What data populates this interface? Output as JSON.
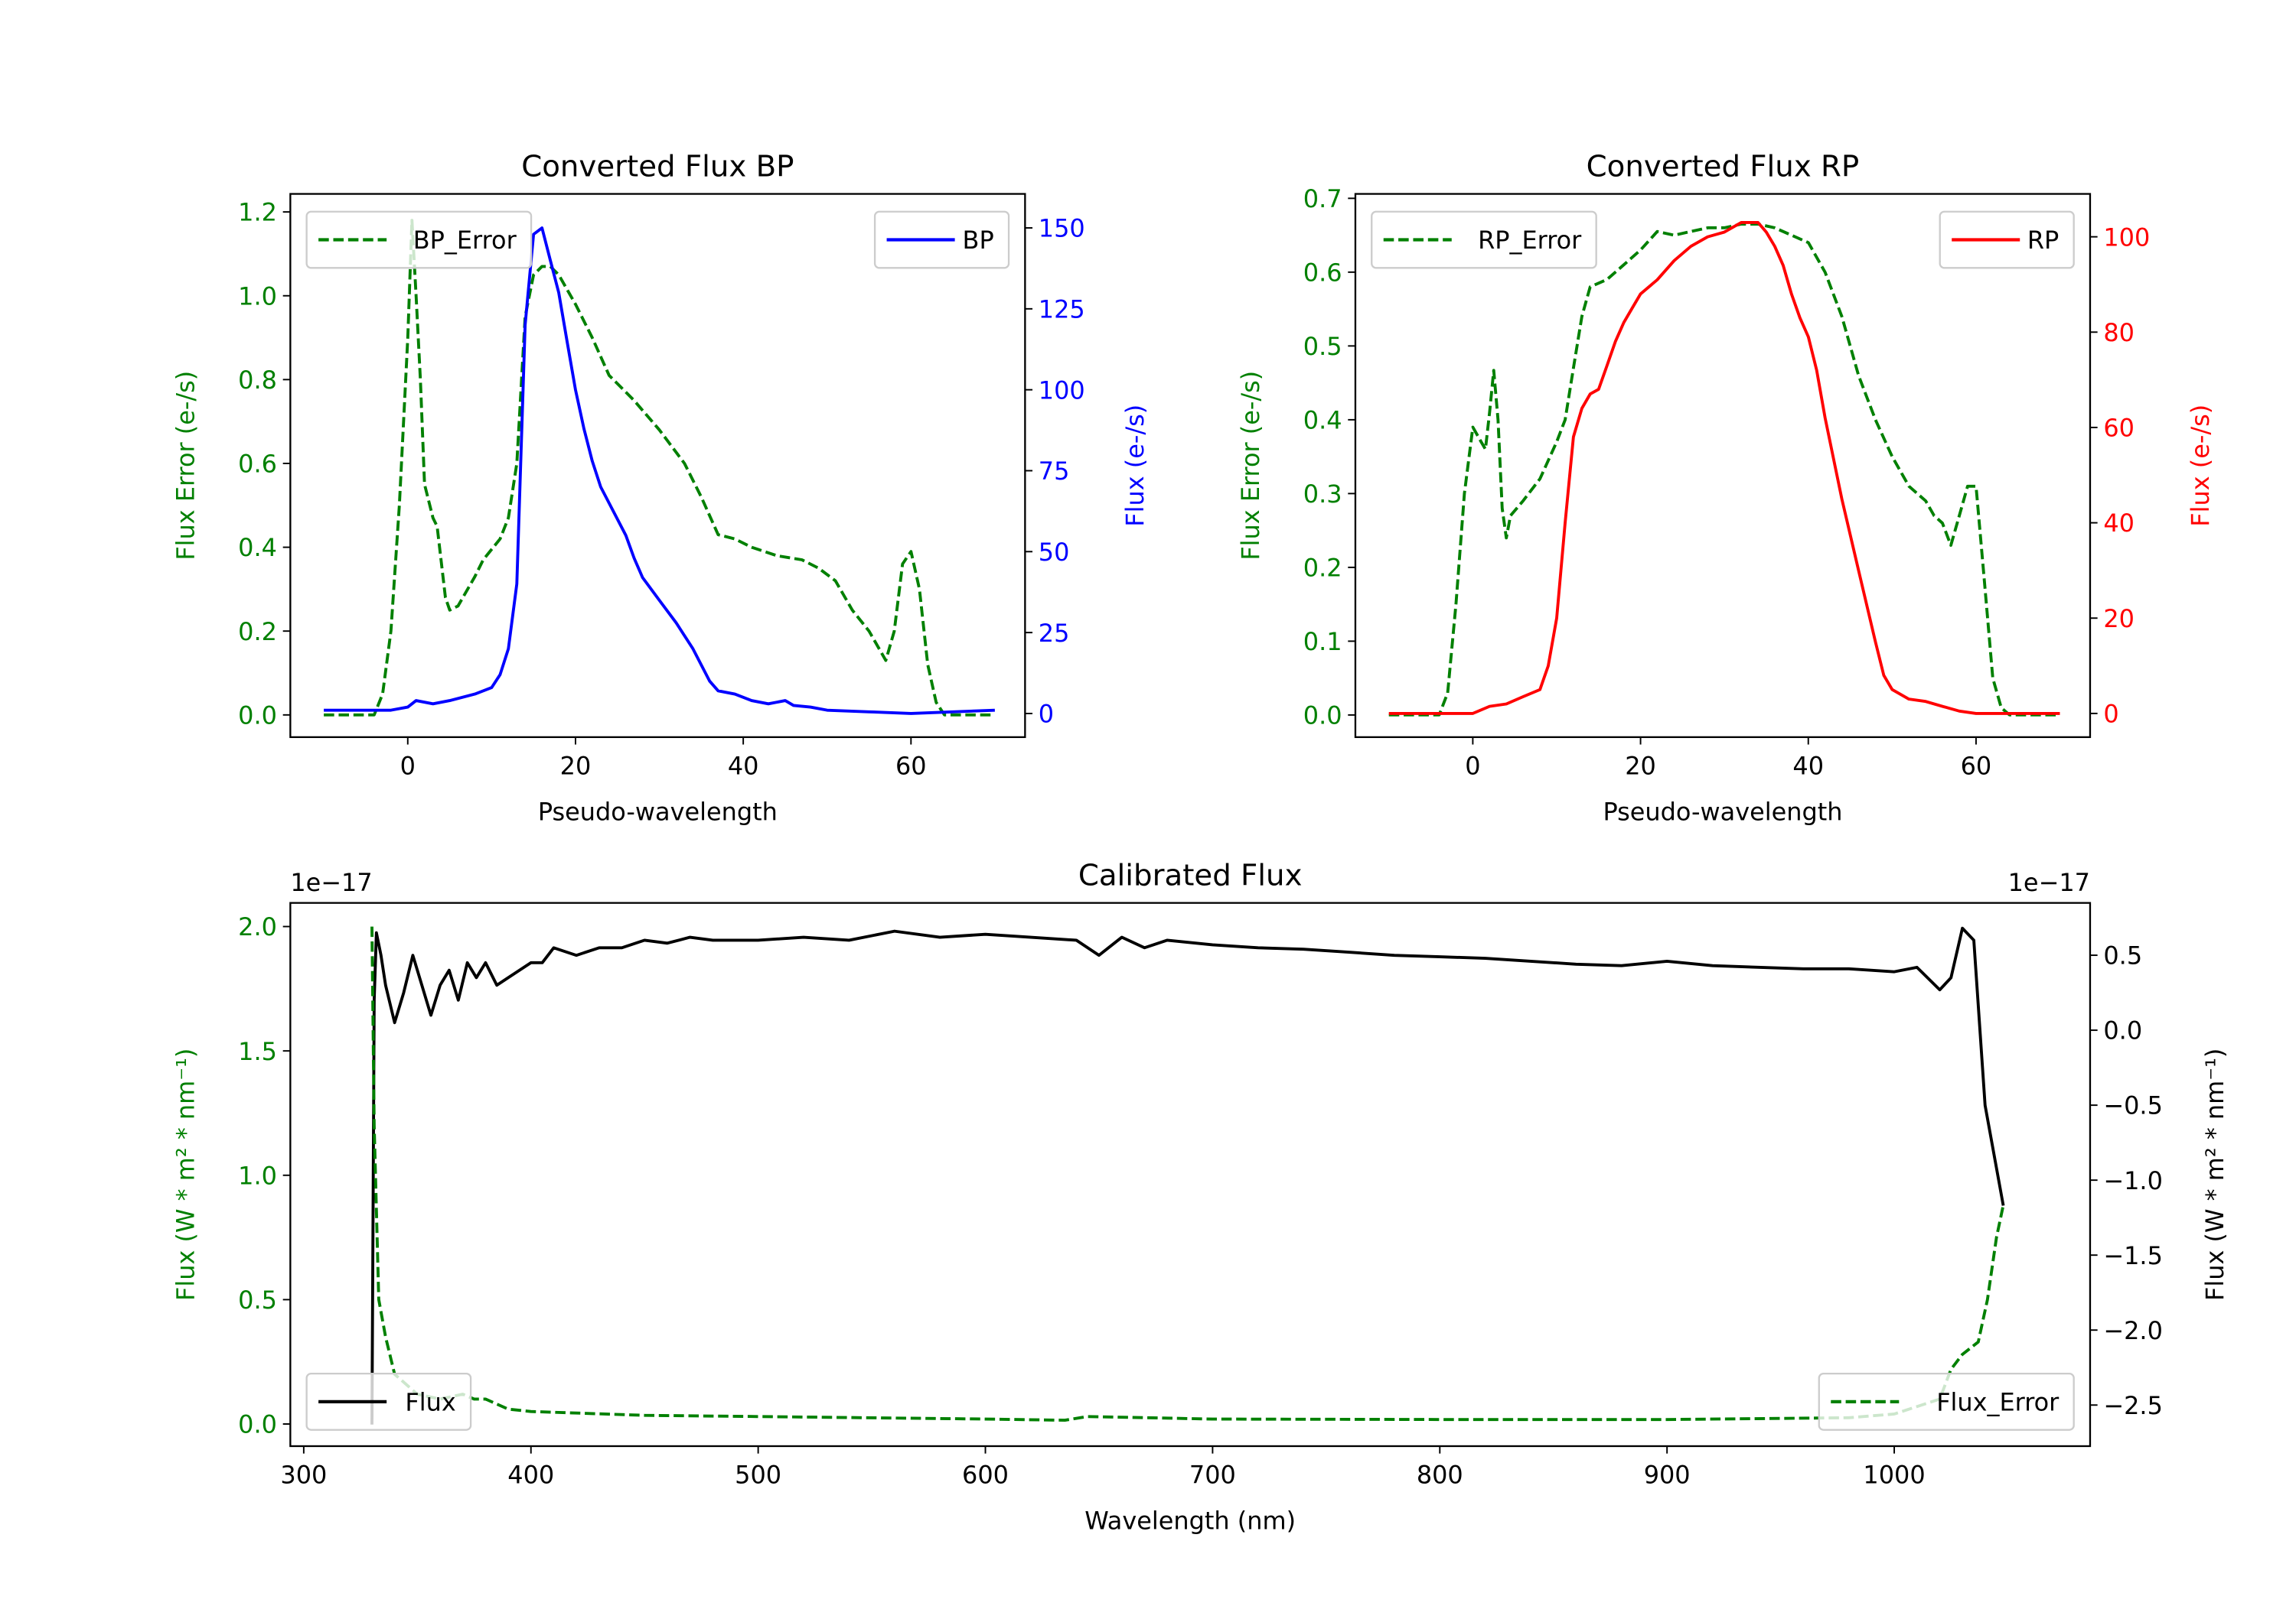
{
  "colors": {
    "error": "#008000",
    "bp": "#0000ff",
    "rp": "#ff0000",
    "flux": "#000000"
  },
  "chart_data": [
    {
      "type": "line",
      "title": "Converted Flux BP",
      "xlabel": "Pseudo-wavelength",
      "ylabel_left": "Flux Error (e-/s)",
      "ylabel_right": "Flux (e-/s)",
      "xlim": [
        -14.0,
        73.6
      ],
      "ylim_left": [
        -0.053,
        1.243
      ],
      "ylim_right": [
        -7.3,
        160.5
      ],
      "xticks": [
        0,
        20,
        40,
        60
      ],
      "yticks_left": [
        "0.0",
        "0.2",
        "0.4",
        "0.6",
        "0.8",
        "1.0",
        "1.2"
      ],
      "yticks_right": [
        "0",
        "25",
        "50",
        "75",
        "100",
        "125",
        "150"
      ],
      "series": [
        {
          "name": "BP_Error",
          "axis": "left",
          "style": "dashed",
          "color": "#008000",
          "legend": "upper left",
          "x": [
            -10,
            -4,
            -3,
            -2,
            -1,
            0,
            0.5,
            1,
            1.5,
            2,
            3,
            3.5,
            4.5,
            5,
            6,
            8,
            9,
            11,
            12,
            13,
            14,
            15,
            16,
            17,
            18,
            20,
            22,
            24,
            26,
            27,
            30,
            33,
            35,
            37,
            39,
            41,
            44,
            47,
            49,
            51,
            53,
            55,
            57,
            58,
            59,
            60,
            61,
            62,
            63,
            64,
            70
          ],
          "y": [
            0,
            0,
            0.05,
            0.2,
            0.5,
            0.9,
            1.18,
            1.0,
            0.8,
            0.55,
            0.47,
            0.45,
            0.28,
            0.25,
            0.26,
            0.33,
            0.37,
            0.42,
            0.47,
            0.6,
            0.95,
            1.05,
            1.07,
            1.07,
            1.05,
            0.98,
            0.9,
            0.81,
            0.77,
            0.75,
            0.68,
            0.6,
            0.52,
            0.43,
            0.42,
            0.4,
            0.38,
            0.37,
            0.35,
            0.32,
            0.25,
            0.2,
            0.13,
            0.2,
            0.36,
            0.39,
            0.3,
            0.12,
            0.03,
            0,
            0
          ]
        },
        {
          "name": "BP",
          "axis": "right",
          "style": "solid",
          "color": "#0000ff",
          "legend": "upper right",
          "x": [
            -10,
            -2,
            0,
            1,
            3,
            5,
            8,
            10,
            11,
            12,
            13,
            13.5,
            14,
            15,
            16,
            17,
            18,
            19,
            20,
            21,
            22,
            23,
            24,
            26,
            27,
            28,
            30,
            32,
            34,
            35,
            36,
            37,
            39,
            41,
            43,
            45,
            46,
            48,
            50,
            55,
            60,
            65,
            70
          ],
          "y": [
            1,
            1,
            2,
            4,
            3,
            4,
            6,
            8,
            12,
            20,
            40,
            80,
            120,
            148,
            150,
            140,
            130,
            115,
            100,
            88,
            78,
            70,
            65,
            55,
            48,
            42,
            35,
            28,
            20,
            15,
            10,
            7,
            6,
            4,
            3,
            4,
            2.5,
            2,
            1,
            0.5,
            0,
            0.5,
            1
          ]
        }
      ]
    },
    {
      "type": "line",
      "title": "Converted Flux RP",
      "xlabel": "Pseudo-wavelength",
      "ylabel_left": "Flux Error (e-/s)",
      "ylabel_right": "Flux (e-/s)",
      "xlim": [
        -14.0,
        73.6
      ],
      "ylim_left": [
        -0.03,
        0.706
      ],
      "ylim_right": [
        -4.97,
        109.0
      ],
      "xticks": [
        0,
        20,
        40,
        60
      ],
      "yticks_left": [
        "0.0",
        "0.1",
        "0.2",
        "0.3",
        "0.4",
        "0.5",
        "0.6",
        "0.7"
      ],
      "yticks_right": [
        "0",
        "20",
        "40",
        "60",
        "80",
        "100"
      ],
      "series": [
        {
          "name": "RP_Error",
          "axis": "left",
          "style": "dashed",
          "color": "#008000",
          "legend": "upper left",
          "x": [
            -10,
            -4,
            -3,
            -2,
            -1,
            0,
            1,
            1.5,
            2,
            2.5,
            3,
            3.5,
            4,
            4.5,
            6,
            8,
            10,
            11,
            12,
            13,
            14,
            16,
            18,
            20,
            22,
            24,
            26,
            28,
            30,
            32,
            34,
            36,
            38,
            40,
            42,
            44,
            46,
            48,
            50,
            52,
            54,
            55,
            56,
            57,
            58,
            59,
            60,
            61,
            62,
            63,
            64,
            70
          ],
          "y": [
            0,
            0,
            0.03,
            0.15,
            0.3,
            0.39,
            0.37,
            0.36,
            0.41,
            0.467,
            0.4,
            0.28,
            0.24,
            0.27,
            0.29,
            0.32,
            0.37,
            0.4,
            0.47,
            0.54,
            0.58,
            0.59,
            0.61,
            0.63,
            0.655,
            0.65,
            0.655,
            0.66,
            0.66,
            0.665,
            0.665,
            0.66,
            0.65,
            0.64,
            0.6,
            0.54,
            0.46,
            0.4,
            0.35,
            0.31,
            0.29,
            0.27,
            0.26,
            0.23,
            0.27,
            0.31,
            0.31,
            0.18,
            0.05,
            0.01,
            0,
            0
          ]
        },
        {
          "name": "RP",
          "axis": "right",
          "style": "solid",
          "color": "#ff0000",
          "legend": "upper right",
          "x": [
            -10,
            0,
            2,
            4,
            6,
            8,
            9,
            10,
            11,
            12,
            13,
            14,
            15,
            16,
            17,
            18,
            19,
            20,
            22,
            24,
            26,
            28,
            30,
            32,
            34,
            35,
            36,
            37,
            38,
            39,
            40,
            41,
            42,
            44,
            46,
            48,
            49,
            50,
            52,
            54,
            56,
            58,
            60,
            70
          ],
          "y": [
            0,
            0,
            1.5,
            2,
            3.5,
            5,
            10,
            20,
            40,
            58,
            64,
            67,
            68,
            73,
            78,
            82,
            85,
            88,
            91,
            95,
            98,
            100,
            101,
            103,
            103,
            101,
            98,
            94,
            88,
            83,
            79,
            72,
            62,
            45,
            30,
            15,
            8,
            5,
            3,
            2.5,
            1.5,
            0.5,
            0,
            0
          ]
        }
      ]
    },
    {
      "type": "line",
      "title": "Calibrated Flux",
      "xlabel": "Wavelength (nm)",
      "ylabel_left": "Flux (W * m² * nm⁻¹)",
      "ylabel_right": "Flux (W * m² * nm⁻¹)",
      "offset_left": "1e−17",
      "offset_right": "1e−17",
      "xlim": [
        294.1,
        1086.2
      ],
      "ylim_left": [
        -0.089,
        2.095
      ],
      "ylim_right": [
        -2.774,
        0.849
      ],
      "xticks": [
        300,
        400,
        500,
        600,
        700,
        800,
        900,
        1000
      ],
      "yticks_left": [
        "0.0",
        "0.5",
        "1.0",
        "1.5",
        "2.0"
      ],
      "yticks_right": [
        "−2.5",
        "−2.0",
        "−1.5",
        "−1.0",
        "−0.5",
        "0.0",
        "0.5"
      ],
      "series": [
        {
          "name": "Flux",
          "axis": "right",
          "style": "solid",
          "color": "#000000",
          "legend": "lower left",
          "x": [
            330,
            331,
            332,
            334,
            336,
            340,
            344,
            348,
            352,
            356,
            360,
            364,
            368,
            372,
            376,
            380,
            385,
            390,
            400,
            405,
            410,
            420,
            430,
            440,
            450,
            460,
            470,
            480,
            500,
            520,
            540,
            560,
            580,
            600,
            620,
            640,
            650,
            660,
            670,
            680,
            700,
            720,
            740,
            760,
            780,
            800,
            820,
            840,
            860,
            880,
            900,
            920,
            940,
            960,
            980,
            1000,
            1010,
            1020,
            1025,
            1030,
            1035,
            1040,
            1048
          ],
          "y": [
            -2.63,
            0.2,
            0.65,
            0.5,
            0.3,
            0.05,
            0.25,
            0.5,
            0.3,
            0.1,
            0.3,
            0.4,
            0.2,
            0.45,
            0.35,
            0.45,
            0.3,
            0.35,
            0.45,
            0.45,
            0.55,
            0.5,
            0.55,
            0.55,
            0.6,
            0.58,
            0.62,
            0.6,
            0.6,
            0.62,
            0.6,
            0.66,
            0.62,
            0.64,
            0.62,
            0.6,
            0.5,
            0.62,
            0.55,
            0.6,
            0.57,
            0.55,
            0.54,
            0.52,
            0.5,
            0.49,
            0.48,
            0.46,
            0.44,
            0.43,
            0.46,
            0.43,
            0.42,
            0.41,
            0.41,
            0.39,
            0.42,
            0.27,
            0.35,
            0.68,
            0.6,
            -0.5,
            -1.17
          ]
        },
        {
          "name": "Flux_Error",
          "axis": "left",
          "style": "dashed",
          "color": "#008000",
          "legend": "lower right",
          "x": [
            330,
            331,
            333,
            336,
            340,
            350,
            360,
            370,
            375,
            380,
            390,
            400,
            450,
            500,
            600,
            635,
            645,
            700,
            800,
            900,
            980,
            1000,
            1020,
            1025,
            1030,
            1037,
            1041,
            1045,
            1048
          ],
          "y": [
            2.0,
            1.2,
            0.5,
            0.35,
            0.2,
            0.12,
            0.1,
            0.12,
            0.1,
            0.1,
            0.06,
            0.05,
            0.035,
            0.03,
            0.02,
            0.015,
            0.03,
            0.02,
            0.018,
            0.018,
            0.025,
            0.04,
            0.1,
            0.22,
            0.28,
            0.33,
            0.5,
            0.75,
            0.88
          ]
        }
      ]
    }
  ]
}
